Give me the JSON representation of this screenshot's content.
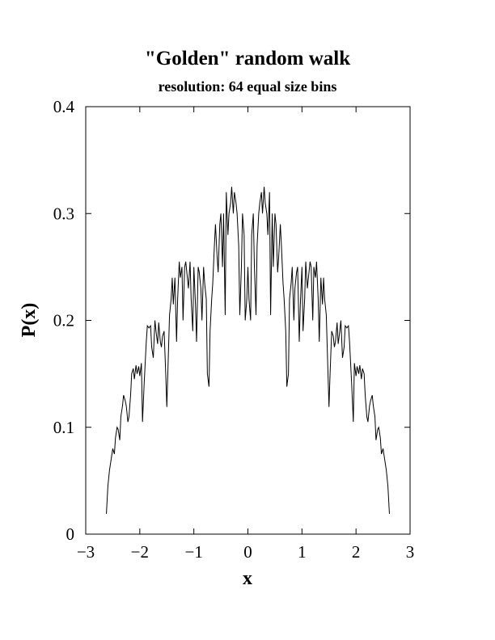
{
  "chart_data": {
    "type": "line",
    "title": "\"Golden\" random walk",
    "subtitle": "resolution: 64 equal size bins",
    "xlabel": "x",
    "ylabel": "P(x)",
    "xlim": [
      -3,
      3
    ],
    "ylim": [
      0,
      0.4
    ],
    "x_ticks": [
      "−3",
      "−2",
      "−1",
      "0",
      "1",
      "2",
      "3"
    ],
    "y_ticks": [
      "0",
      "0.1",
      "0.2",
      "0.3",
      "0.4"
    ],
    "grid": false,
    "series": [
      {
        "color": "#000000",
        "x": [
          -2.618,
          -2.59,
          -2.56,
          -2.53,
          -2.5,
          -2.47,
          -2.45,
          -2.42,
          -2.4,
          -2.37,
          -2.35,
          -2.32,
          -2.3,
          -2.27,
          -2.25,
          -2.22,
          -2.2,
          -2.17,
          -2.15,
          -2.12,
          -2.1,
          -2.07,
          -2.05,
          -2.02,
          -2.0,
          -1.97,
          -1.95,
          -1.92,
          -1.9,
          -1.88,
          -1.86,
          -1.83,
          -1.8,
          -1.78,
          -1.75,
          -1.72,
          -1.7,
          -1.67,
          -1.65,
          -1.62,
          -1.6,
          -1.58,
          -1.55,
          -1.52,
          -1.5,
          -1.47,
          -1.45,
          -1.42,
          -1.4,
          -1.38,
          -1.35,
          -1.32,
          -1.3,
          -1.27,
          -1.25,
          -1.22,
          -1.2,
          -1.17,
          -1.15,
          -1.12,
          -1.1,
          -1.07,
          -1.05,
          -1.02,
          -1.0,
          -0.97,
          -0.95,
          -0.92,
          -0.9,
          -0.87,
          -0.85,
          -0.82,
          -0.8,
          -0.77,
          -0.75,
          -0.72,
          -0.7,
          -0.67,
          -0.65,
          -0.62,
          -0.6,
          -0.57,
          -0.55,
          -0.52,
          -0.5,
          -0.47,
          -0.45,
          -0.42,
          -0.4,
          -0.37,
          -0.35,
          -0.32,
          -0.3,
          -0.27,
          -0.25,
          -0.22,
          -0.2,
          -0.17,
          -0.15,
          -0.12,
          -0.1,
          -0.07,
          -0.05,
          -0.02,
          0.0,
          0.02,
          0.05,
          0.07,
          0.1,
          0.12,
          0.15,
          0.17,
          0.2,
          0.22,
          0.25,
          0.27,
          0.3,
          0.32,
          0.35,
          0.37,
          0.4,
          0.42,
          0.45,
          0.47,
          0.5,
          0.52,
          0.55,
          0.57,
          0.6,
          0.62,
          0.65,
          0.67,
          0.7,
          0.72,
          0.75,
          0.77,
          0.8,
          0.82,
          0.85,
          0.87,
          0.9,
          0.92,
          0.95,
          0.97,
          1.0,
          1.02,
          1.05,
          1.07,
          1.1,
          1.12,
          1.15,
          1.17,
          1.2,
          1.22,
          1.25,
          1.27,
          1.3,
          1.32,
          1.35,
          1.38,
          1.4,
          1.42,
          1.45,
          1.47,
          1.5,
          1.52,
          1.55,
          1.58,
          1.6,
          1.62,
          1.65,
          1.67,
          1.7,
          1.72,
          1.75,
          1.78,
          1.8,
          1.83,
          1.86,
          1.88,
          1.9,
          1.92,
          1.95,
          1.97,
          2.0,
          2.02,
          2.05,
          2.07,
          2.1,
          2.12,
          2.15,
          2.17,
          2.2,
          2.22,
          2.25,
          2.27,
          2.3,
          2.32,
          2.35,
          2.37,
          2.4,
          2.42,
          2.45,
          2.47,
          2.5,
          2.53,
          2.56,
          2.59,
          2.618
        ],
        "y": [
          0.019,
          0.045,
          0.06,
          0.07,
          0.08,
          0.075,
          0.09,
          0.1,
          0.098,
          0.088,
          0.11,
          0.12,
          0.13,
          0.125,
          0.12,
          0.105,
          0.11,
          0.13,
          0.15,
          0.155,
          0.145,
          0.158,
          0.15,
          0.157,
          0.148,
          0.16,
          0.105,
          0.14,
          0.16,
          0.18,
          0.195,
          0.193,
          0.195,
          0.175,
          0.165,
          0.2,
          0.19,
          0.178,
          0.198,
          0.18,
          0.175,
          0.185,
          0.19,
          0.15,
          0.119,
          0.17,
          0.205,
          0.22,
          0.24,
          0.215,
          0.24,
          0.18,
          0.22,
          0.255,
          0.24,
          0.25,
          0.2,
          0.25,
          0.255,
          0.24,
          0.23,
          0.255,
          0.22,
          0.19,
          0.25,
          0.215,
          0.18,
          0.25,
          0.245,
          0.23,
          0.2,
          0.25,
          0.235,
          0.22,
          0.15,
          0.138,
          0.19,
          0.22,
          0.235,
          0.27,
          0.29,
          0.26,
          0.245,
          0.29,
          0.3,
          0.25,
          0.3,
          0.205,
          0.32,
          0.28,
          0.3,
          0.31,
          0.325,
          0.3,
          0.32,
          0.31,
          0.3,
          0.27,
          0.205,
          0.25,
          0.3,
          0.28,
          0.2,
          0.22,
          0.25,
          0.22,
          0.2,
          0.28,
          0.3,
          0.25,
          0.205,
          0.27,
          0.3,
          0.31,
          0.32,
          0.3,
          0.325,
          0.31,
          0.3,
          0.28,
          0.32,
          0.205,
          0.3,
          0.25,
          0.3,
          0.29,
          0.245,
          0.26,
          0.29,
          0.27,
          0.235,
          0.22,
          0.19,
          0.138,
          0.15,
          0.22,
          0.235,
          0.25,
          0.2,
          0.23,
          0.245,
          0.25,
          0.18,
          0.215,
          0.25,
          0.19,
          0.22,
          0.255,
          0.23,
          0.24,
          0.255,
          0.25,
          0.2,
          0.25,
          0.24,
          0.255,
          0.22,
          0.18,
          0.24,
          0.215,
          0.24,
          0.22,
          0.205,
          0.17,
          0.119,
          0.15,
          0.19,
          0.185,
          0.175,
          0.18,
          0.198,
          0.178,
          0.19,
          0.2,
          0.165,
          0.175,
          0.195,
          0.193,
          0.195,
          0.18,
          0.16,
          0.14,
          0.105,
          0.16,
          0.148,
          0.157,
          0.15,
          0.158,
          0.145,
          0.155,
          0.15,
          0.13,
          0.11,
          0.105,
          0.12,
          0.125,
          0.13,
          0.12,
          0.11,
          0.088,
          0.098,
          0.1,
          0.09,
          0.075,
          0.08,
          0.07,
          0.06,
          0.045,
          0.019
        ]
      }
    ]
  }
}
